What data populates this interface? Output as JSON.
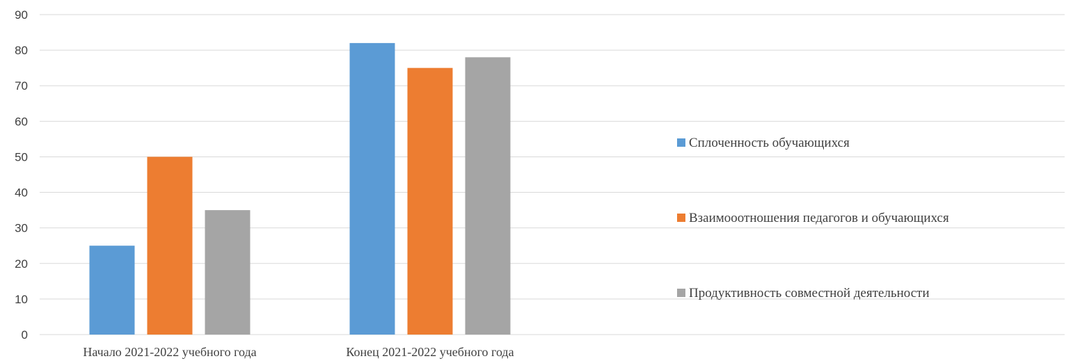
{
  "chart_data": {
    "type": "bar",
    "title": "",
    "xlabel": "",
    "ylabel": "",
    "categories": [
      "Начало 2021-2022 учебного года",
      "Конец 2021-2022 учебного года"
    ],
    "series": [
      {
        "name": "Сплоченность обучающихся",
        "values": [
          25,
          82
        ],
        "color": "#5b9bd5"
      },
      {
        "name": "Взаимооотношения педагогов и обучающихся",
        "values": [
          50,
          75
        ],
        "color": "#ed7d31"
      },
      {
        "name": "Продуктивность совместной деятельности",
        "values": [
          35,
          78
        ],
        "color": "#a5a5a5"
      }
    ],
    "ylim": [
      0,
      90
    ],
    "yticks": [
      "0",
      "10",
      "20",
      "30",
      "40",
      "50",
      "60",
      "70",
      "80",
      "90"
    ],
    "grid": true,
    "legend_position": "right"
  }
}
